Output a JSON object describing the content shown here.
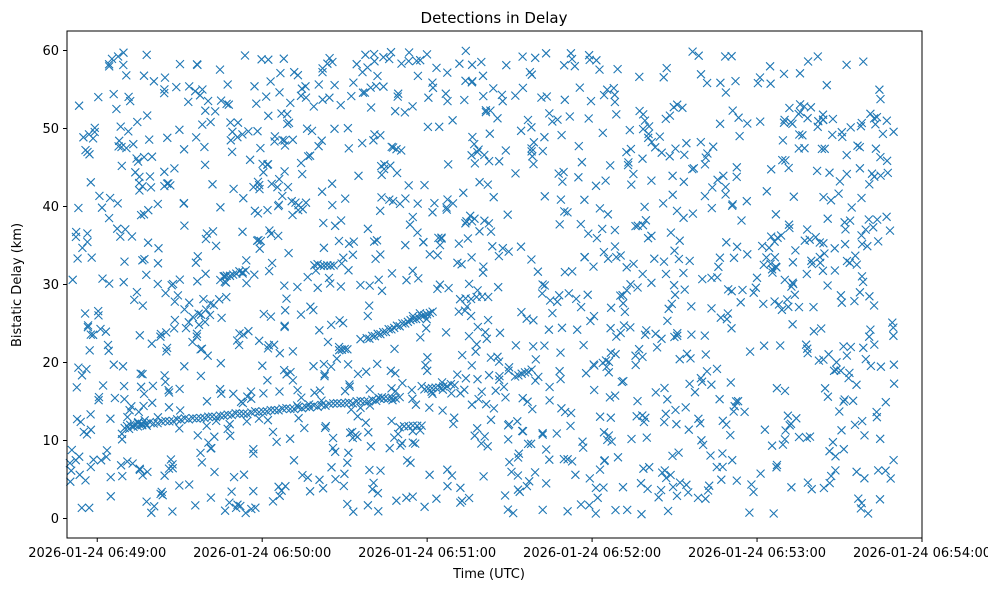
{
  "chart_data": {
    "type": "scatter",
    "title": "Detections in Delay",
    "xlabel": "Time (UTC)",
    "ylabel": "Bistatic Delay (km)",
    "x_axis_type": "datetime",
    "xlim": [
      "2026-01-24 06:48:49",
      "2026-01-24 06:54:00"
    ],
    "ylim": [
      -2.5,
      62.5
    ],
    "x_ticks": [
      "2026-01-24 06:49:00",
      "2026-01-24 06:50:00",
      "2026-01-24 06:51:00",
      "2026-01-24 06:52:00",
      "2026-01-24 06:53:00",
      "2026-01-24 06:54:00"
    ],
    "y_ticks": [
      0,
      10,
      20,
      30,
      40,
      50,
      60
    ],
    "marker": "x",
    "color": "#1f77b4",
    "grid": false,
    "random_background": {
      "count": 1450,
      "x_range": [
        "2026-01-24 06:48:50",
        "2026-01-24 06:53:50"
      ],
      "y_range": [
        0.5,
        60
      ]
    },
    "tracks": [
      {
        "x_start": "2026-01-24 06:49:12",
        "y_start": 12.0,
        "x_end": "2026-01-24 06:50:50",
        "y_end": 15.5,
        "count": 70
      },
      {
        "x_start": "2026-01-24 06:50:38",
        "y_start": 23.0,
        "x_end": "2026-01-24 06:51:02",
        "y_end": 26.5,
        "count": 25
      },
      {
        "x_start": "2026-01-24 06:51:12",
        "y_start": 28.0,
        "x_end": "2026-01-24 06:51:20",
        "y_end": 28.5,
        "count": 5
      },
      {
        "x_start": "2026-01-24 06:49:10",
        "y_start": 11.5,
        "x_end": "2026-01-24 06:49:18",
        "y_end": 12.0,
        "count": 6
      },
      {
        "x_start": "2026-01-24 06:50:50",
        "y_start": 11.8,
        "x_end": "2026-01-24 06:50:58",
        "y_end": 11.8,
        "count": 6
      },
      {
        "x_start": "2026-01-24 06:50:59",
        "y_start": 16.5,
        "x_end": "2026-01-24 06:51:10",
        "y_end": 17.2,
        "count": 9
      },
      {
        "x_start": "2026-01-24 06:51:32",
        "y_start": 18.3,
        "x_end": "2026-01-24 06:51:38",
        "y_end": 19.0,
        "count": 6
      },
      {
        "x_start": "2026-01-24 06:49:46",
        "y_start": 31.0,
        "x_end": "2026-01-24 06:49:54",
        "y_end": 31.8,
        "count": 8
      },
      {
        "x_start": "2026-01-24 06:50:19",
        "y_start": 32.5,
        "x_end": "2026-01-24 06:50:26",
        "y_end": 32.5,
        "count": 7
      },
      {
        "x_start": "2026-01-24 06:50:28",
        "y_start": 21.5,
        "x_end": "2026-01-24 06:50:31",
        "y_end": 21.8,
        "count": 4
      }
    ]
  }
}
